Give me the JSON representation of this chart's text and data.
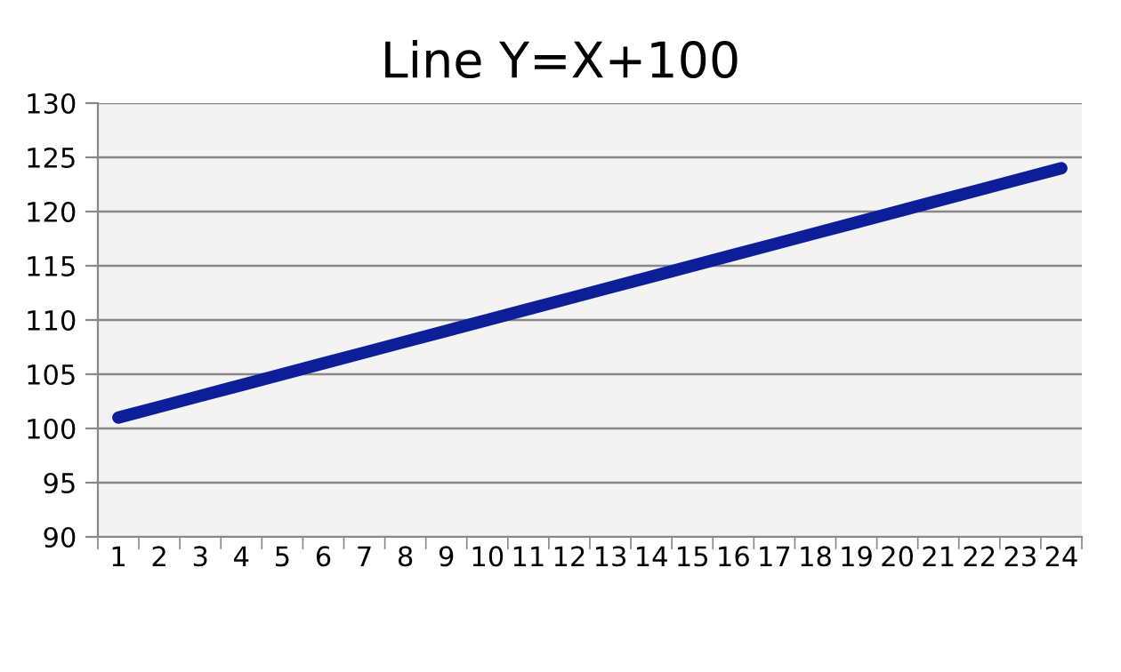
{
  "chart_data": {
    "type": "line",
    "title": "Line Y=X+100",
    "categories": [
      "1",
      "2",
      "3",
      "4",
      "5",
      "6",
      "7",
      "8",
      "9",
      "10",
      "11",
      "12",
      "13",
      "14",
      "15",
      "16",
      "17",
      "18",
      "19",
      "20",
      "21",
      "22",
      "23",
      "24"
    ],
    "series": [
      {
        "color": "#0c1f99",
        "values": [
          101,
          102,
          103,
          104,
          105,
          106,
          107,
          108,
          109,
          110,
          111,
          112,
          113,
          114,
          115,
          116,
          117,
          118,
          119,
          120,
          121,
          122,
          123,
          124
        ]
      }
    ],
    "ylim": [
      90,
      130
    ],
    "yticks": [
      90,
      95,
      100,
      105,
      110,
      115,
      120,
      125,
      130
    ],
    "grid": "y",
    "marker": "none",
    "line_style": "solid"
  }
}
